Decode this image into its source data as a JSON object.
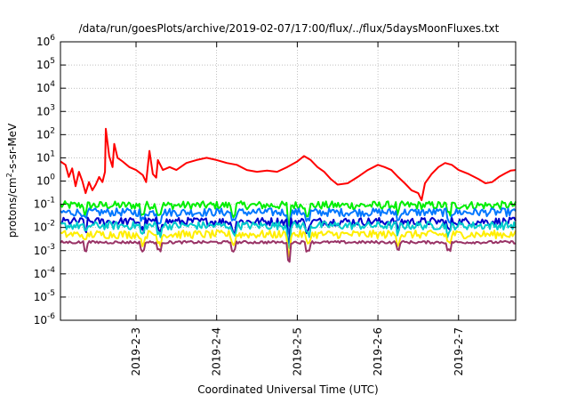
{
  "chart_data": {
    "type": "line",
    "title": "/data/run/goesPlots/archive/2019-02-07/17:00/flux/../flux/5daysMoonFluxes.txt",
    "xlabel": "Coordinated Universal Time (UTC)",
    "ylabel_main": "protons/cm",
    "ylabel_sup": "2",
    "ylabel_tail": "-s-sr-MeV",
    "y_scale": "log",
    "ylim": [
      1e-06,
      1000000.0
    ],
    "xlim": [
      "2019-02-02T01:30",
      "2019-02-07T17:00"
    ],
    "y_ticks": [
      {
        "value": 1e-06,
        "base": "10",
        "exp": "-6"
      },
      {
        "value": 1e-05,
        "base": "10",
        "exp": "-5"
      },
      {
        "value": 0.0001,
        "base": "10",
        "exp": "-4"
      },
      {
        "value": 0.001,
        "base": "10",
        "exp": "-3"
      },
      {
        "value": 0.01,
        "base": "10",
        "exp": "-2"
      },
      {
        "value": 0.1,
        "base": "10",
        "exp": "-1"
      },
      {
        "value": 1.0,
        "base": "10",
        "exp": "0"
      },
      {
        "value": 10.0,
        "base": "10",
        "exp": "1"
      },
      {
        "value": 100.0,
        "base": "10",
        "exp": "2"
      },
      {
        "value": 1000.0,
        "base": "10",
        "exp": "3"
      },
      {
        "value": 10000.0,
        "base": "10",
        "exp": "4"
      },
      {
        "value": 100000.0,
        "base": "10",
        "exp": "5"
      },
      {
        "value": 1000000.0,
        "base": "10",
        "exp": "6"
      }
    ],
    "x_ticks": [
      {
        "date": "2019-02-03T00:00",
        "label": "2019-2-3"
      },
      {
        "date": "2019-02-04T00:00",
        "label": "2019-2-4"
      },
      {
        "date": "2019-02-05T00:00",
        "label": "2019-2-5"
      },
      {
        "date": "2019-02-06T00:00",
        "label": "2019-2-6"
      },
      {
        "date": "2019-02-07T00:00",
        "label": "2019-2-7"
      }
    ],
    "grid": true,
    "series": [
      {
        "color": "#ff0000",
        "points": [
          [
            "2019-02-02T01:30",
            7
          ],
          [
            "2019-02-02T03:00",
            5
          ],
          [
            "2019-02-02T04:00",
            1.5
          ],
          [
            "2019-02-02T05:00",
            3.5
          ],
          [
            "2019-02-02T06:00",
            0.6
          ],
          [
            "2019-02-02T07:00",
            2.5
          ],
          [
            "2019-02-02T08:00",
            1
          ],
          [
            "2019-02-02T09:00",
            0.3
          ],
          [
            "2019-02-02T10:00",
            0.9
          ],
          [
            "2019-02-02T11:00",
            0.4
          ],
          [
            "2019-02-02T12:00",
            0.7
          ],
          [
            "2019-02-02T13:00",
            1.5
          ],
          [
            "2019-02-02T14:00",
            0.9
          ],
          [
            "2019-02-02T14:45",
            2.5
          ],
          [
            "2019-02-02T15:00",
            180
          ],
          [
            "2019-02-02T16:00",
            12
          ],
          [
            "2019-02-02T17:00",
            4
          ],
          [
            "2019-02-02T17:30",
            40
          ],
          [
            "2019-02-02T18:30",
            10
          ],
          [
            "2019-02-02T20:00",
            7
          ],
          [
            "2019-02-02T22:00",
            4
          ],
          [
            "2019-02-03T00:00",
            3
          ],
          [
            "2019-02-03T02:00",
            1.8
          ],
          [
            "2019-02-03T03:00",
            0.9
          ],
          [
            "2019-02-03T04:00",
            20
          ],
          [
            "2019-02-03T05:00",
            2
          ],
          [
            "2019-02-03T06:00",
            1.4
          ],
          [
            "2019-02-03T06:30",
            8
          ],
          [
            "2019-02-03T08:00",
            3
          ],
          [
            "2019-02-03T10:00",
            4
          ],
          [
            "2019-02-03T12:00",
            3
          ],
          [
            "2019-02-03T15:00",
            6
          ],
          [
            "2019-02-03T18:00",
            8
          ],
          [
            "2019-02-03T21:00",
            10
          ],
          [
            "2019-02-04T00:00",
            8
          ],
          [
            "2019-02-04T03:00",
            6
          ],
          [
            "2019-02-04T06:00",
            5
          ],
          [
            "2019-02-04T09:00",
            3
          ],
          [
            "2019-02-04T12:00",
            2.5
          ],
          [
            "2019-02-04T15:00",
            2.8
          ],
          [
            "2019-02-04T18:00",
            2.5
          ],
          [
            "2019-02-04T21:00",
            4
          ],
          [
            "2019-02-05T00:00",
            7
          ],
          [
            "2019-02-05T02:00",
            12
          ],
          [
            "2019-02-05T04:00",
            8
          ],
          [
            "2019-02-05T06:00",
            4
          ],
          [
            "2019-02-05T08:00",
            2.5
          ],
          [
            "2019-02-05T10:00",
            1.2
          ],
          [
            "2019-02-05T12:00",
            0.7
          ],
          [
            "2019-02-05T15:00",
            0.8
          ],
          [
            "2019-02-05T18:00",
            1.5
          ],
          [
            "2019-02-05T21:00",
            3
          ],
          [
            "2019-02-06T00:00",
            5
          ],
          [
            "2019-02-06T02:00",
            4
          ],
          [
            "2019-02-06T04:00",
            3
          ],
          [
            "2019-02-06T06:00",
            1.5
          ],
          [
            "2019-02-06T08:00",
            0.8
          ],
          [
            "2019-02-06T10:00",
            0.4
          ],
          [
            "2019-02-06T12:00",
            0.3
          ],
          [
            "2019-02-06T13:00",
            0.15
          ],
          [
            "2019-02-06T14:00",
            0.8
          ],
          [
            "2019-02-06T16:00",
            2
          ],
          [
            "2019-02-06T18:00",
            4
          ],
          [
            "2019-02-06T20:00",
            6
          ],
          [
            "2019-02-06T22:00",
            5
          ],
          [
            "2019-02-07T00:00",
            3
          ],
          [
            "2019-02-07T03:00",
            2
          ],
          [
            "2019-02-07T06:00",
            1.2
          ],
          [
            "2019-02-07T08:00",
            0.8
          ],
          [
            "2019-02-07T10:00",
            0.9
          ],
          [
            "2019-02-07T12:00",
            1.5
          ],
          [
            "2019-02-07T14:00",
            2.2
          ],
          [
            "2019-02-07T15:30",
            2.8
          ],
          [
            "2019-02-07T17:00",
            3
          ]
        ]
      },
      {
        "color": "#00ee00",
        "level": 0.09
      },
      {
        "color": "#0077ff",
        "level": 0.045
      },
      {
        "color": "#0000cc",
        "level": 0.018
      },
      {
        "color": "#00cccc",
        "level": 0.012
      },
      {
        "color": "#ffee00",
        "level": 0.005
      },
      {
        "color": "#993366",
        "level": 0.0023
      }
    ]
  }
}
